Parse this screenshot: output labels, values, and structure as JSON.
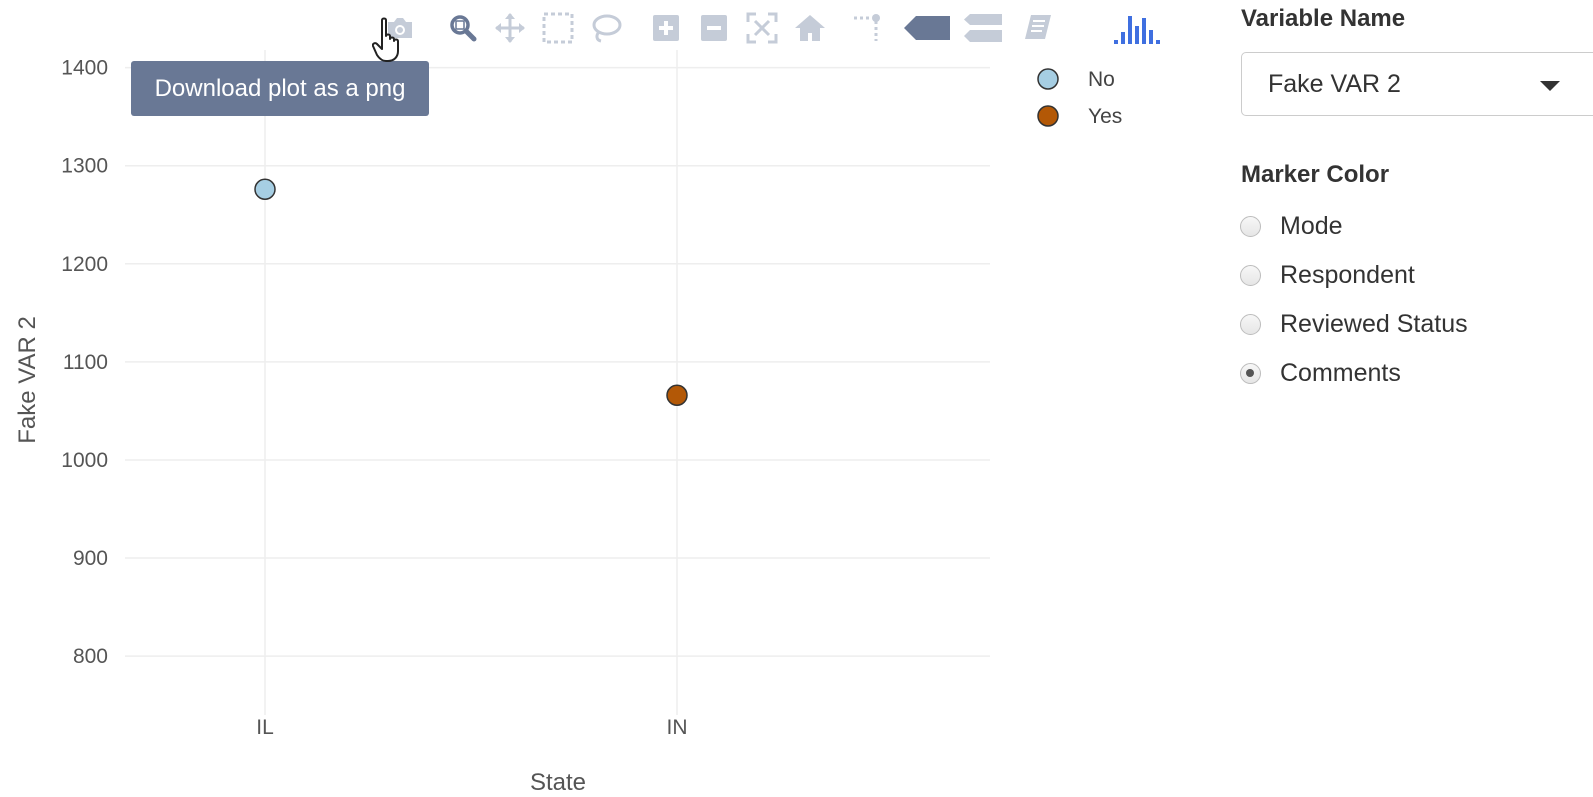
{
  "chart_data": {
    "type": "scatter",
    "xlabel": "State",
    "ylabel": "Fake VAR 2",
    "categories": [
      "IL",
      "IN"
    ],
    "ylim": [
      740,
      1420
    ],
    "yticks": [
      800,
      900,
      1000,
      1100,
      1200,
      1300,
      1400
    ],
    "series": [
      {
        "name": "No",
        "color": "#a6cee3",
        "points": [
          {
            "x": "IL",
            "y": 1276
          }
        ]
      },
      {
        "name": "Yes",
        "color": "#b35806",
        "points": [
          {
            "x": "IN",
            "y": 1066
          }
        ]
      }
    ],
    "legend_position": "top-right",
    "grid": true
  },
  "modebar": {
    "buttons": [
      {
        "name": "camera-icon",
        "title": "Download plot as a png"
      },
      {
        "name": "zoom-icon"
      },
      {
        "name": "pan-icon"
      },
      {
        "name": "box-select-icon"
      },
      {
        "name": "lasso-select-icon"
      },
      {
        "name": "zoom-in-icon"
      },
      {
        "name": "zoom-out-icon"
      },
      {
        "name": "autoscale-icon"
      },
      {
        "name": "home-icon"
      },
      {
        "name": "spike-lines-icon"
      },
      {
        "name": "hover-closest-icon"
      },
      {
        "name": "hover-compare-icon"
      },
      {
        "name": "edit-in-chart-studio-icon"
      },
      {
        "name": "plotly-logo-icon"
      }
    ],
    "icon_color": "#c5ccd8",
    "logo_color": "#3f6fe0"
  },
  "tooltip": {
    "text": "Download plot as a png"
  },
  "controls": {
    "variable_label": "Variable Name",
    "variable_value": "Fake VAR 2",
    "marker_label": "Marker Color",
    "marker_options": [
      {
        "label": "Mode",
        "checked": false
      },
      {
        "label": "Respondent",
        "checked": false
      },
      {
        "label": "Reviewed Status",
        "checked": false
      },
      {
        "label": "Comments",
        "checked": true
      }
    ]
  }
}
